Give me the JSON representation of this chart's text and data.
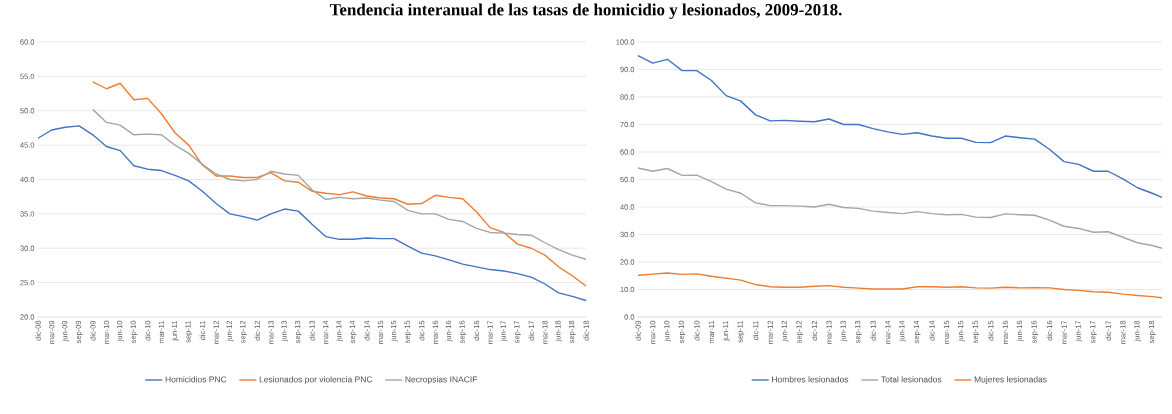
{
  "chart_data": [
    {
      "type": "line",
      "title": "Tendencia interanual de las tasas de homicidio y lesionados, 2009-2018.",
      "grid": "y",
      "legend": "bottom",
      "xlim": [
        "2008-12",
        "2018-12"
      ],
      "ylim": [
        20,
        60
      ],
      "yticks": [
        {
          "value": 20,
          "label": "20.0"
        },
        {
          "value": 25,
          "label": "25.0"
        },
        {
          "value": 30,
          "label": "30.0"
        },
        {
          "value": 35,
          "label": "35.0"
        },
        {
          "value": 40,
          "label": "40.0"
        },
        {
          "value": 45,
          "label": "45.0"
        },
        {
          "value": 50,
          "label": "50.0"
        },
        {
          "value": 55,
          "label": "55.0"
        },
        {
          "value": 60,
          "label": "60.0"
        }
      ],
      "xticks": [
        {
          "value": "2008-12",
          "label": "dic-08"
        },
        {
          "value": "2009-03",
          "label": "mar-09"
        },
        {
          "value": "2009-06",
          "label": "jun-09"
        },
        {
          "value": "2009-09",
          "label": "sep-09"
        },
        {
          "value": "2009-12",
          "label": "dic-09"
        },
        {
          "value": "2010-03",
          "label": "mar-10"
        },
        {
          "value": "2010-06",
          "label": "jun-10"
        },
        {
          "value": "2010-09",
          "label": "sep-10"
        },
        {
          "value": "2010-12",
          "label": "dic-10"
        },
        {
          "value": "2011-03",
          "label": "mar-11"
        },
        {
          "value": "2011-06",
          "label": "jun-11"
        },
        {
          "value": "2011-09",
          "label": "sep-11"
        },
        {
          "value": "2011-12",
          "label": "dic-11"
        },
        {
          "value": "2012-03",
          "label": "mar-12"
        },
        {
          "value": "2012-06",
          "label": "jun-12"
        },
        {
          "value": "2012-09",
          "label": "sep-12"
        },
        {
          "value": "2012-12",
          "label": "dic-12"
        },
        {
          "value": "2013-03",
          "label": "mar-13"
        },
        {
          "value": "2013-06",
          "label": "jun-13"
        },
        {
          "value": "2013-09",
          "label": "sep-13"
        },
        {
          "value": "2013-12",
          "label": "dic-13"
        },
        {
          "value": "2014-03",
          "label": "mar-14"
        },
        {
          "value": "2014-06",
          "label": "jun-14"
        },
        {
          "value": "2014-09",
          "label": "sep-14"
        },
        {
          "value": "2014-12",
          "label": "dic-14"
        },
        {
          "value": "2015-03",
          "label": "mar-15"
        },
        {
          "value": "2015-06",
          "label": "jun-15"
        },
        {
          "value": "2015-09",
          "label": "sep-15"
        },
        {
          "value": "2015-12",
          "label": "dic-15"
        },
        {
          "value": "2016-03",
          "label": "mar-16"
        },
        {
          "value": "2016-06",
          "label": "jun-16"
        },
        {
          "value": "2016-09",
          "label": "sep-16"
        },
        {
          "value": "2016-12",
          "label": "dic-16"
        },
        {
          "value": "2017-03",
          "label": "mar-17"
        },
        {
          "value": "2017-06",
          "label": "jun-17"
        },
        {
          "value": "2017-09",
          "label": "sep-17"
        },
        {
          "value": "2017-12",
          "label": "dic-17"
        },
        {
          "value": "2018-03",
          "label": "mar-18"
        },
        {
          "value": "2018-06",
          "label": "jun-18"
        },
        {
          "value": "2018-09",
          "label": "sep-18"
        },
        {
          "value": "2018-12",
          "label": "dic-18"
        }
      ],
      "series": [
        {
          "name": "Homicidios PNC",
          "color": "#4472c4",
          "x": [
            "2008-12",
            "2009-03",
            "2009-06",
            "2009-09",
            "2009-12",
            "2010-03",
            "2010-06",
            "2010-09",
            "2010-12",
            "2011-03",
            "2011-06",
            "2011-09",
            "2011-12",
            "2012-03",
            "2012-06",
            "2012-09",
            "2012-12",
            "2013-03",
            "2013-06",
            "2013-09",
            "2013-12",
            "2014-03",
            "2014-06",
            "2014-09",
            "2014-12",
            "2015-03",
            "2015-06",
            "2015-09",
            "2015-12",
            "2016-03",
            "2016-06",
            "2016-09",
            "2016-12",
            "2017-03",
            "2017-06",
            "2017-09",
            "2017-12",
            "2018-03",
            "2018-06",
            "2018-09",
            "2018-12"
          ],
          "values": [
            46.0,
            47.2,
            47.6,
            47.8,
            46.5,
            44.8,
            44.2,
            42.0,
            41.5,
            41.3,
            40.6,
            39.8,
            38.3,
            36.5,
            35.0,
            34.6,
            34.1,
            35.0,
            35.7,
            35.4,
            33.5,
            31.7,
            31.3,
            31.3,
            31.5,
            31.4,
            31.4,
            30.3,
            29.3,
            28.9,
            28.3,
            27.7,
            27.3,
            26.9,
            26.7,
            26.3,
            25.8,
            24.8,
            23.5,
            23.0,
            22.4
          ]
        },
        {
          "name": "Lesionados por violencia PNC",
          "color": "#ed7d31",
          "x": [
            "2009-12",
            "2010-03",
            "2010-06",
            "2010-09",
            "2010-12",
            "2011-03",
            "2011-06",
            "2011-09",
            "2011-12",
            "2012-03",
            "2012-06",
            "2012-09",
            "2012-12",
            "2013-03",
            "2013-06",
            "2013-09",
            "2013-12",
            "2014-03",
            "2014-06",
            "2014-09",
            "2014-12",
            "2015-03",
            "2015-06",
            "2015-09",
            "2015-12",
            "2016-03",
            "2016-06",
            "2016-09",
            "2016-12",
            "2017-03",
            "2017-06",
            "2017-09",
            "2017-12",
            "2018-03",
            "2018-06",
            "2018-09",
            "2018-12"
          ],
          "values": [
            54.2,
            53.2,
            54.0,
            51.6,
            51.8,
            49.6,
            46.8,
            45.0,
            42.1,
            40.5,
            40.5,
            40.3,
            40.3,
            41.0,
            39.8,
            39.6,
            38.3,
            38.0,
            37.8,
            38.2,
            37.6,
            37.3,
            37.2,
            36.4,
            36.5,
            37.7,
            37.4,
            37.2,
            35.3,
            33.0,
            32.3,
            30.6,
            30.0,
            29.0,
            27.3,
            26.0,
            24.5
          ]
        },
        {
          "name": "Necropsias INACIF",
          "color": "#a5a5a5",
          "x": [
            "2009-12",
            "2010-03",
            "2010-06",
            "2010-09",
            "2010-12",
            "2011-03",
            "2011-06",
            "2011-09",
            "2011-12",
            "2012-03",
            "2012-06",
            "2012-09",
            "2012-12",
            "2013-03",
            "2013-06",
            "2013-09",
            "2013-12",
            "2014-03",
            "2014-06",
            "2014-09",
            "2014-12",
            "2015-03",
            "2015-06",
            "2015-09",
            "2015-12",
            "2016-03",
            "2016-06",
            "2016-09",
            "2016-12",
            "2017-03",
            "2017-06",
            "2017-09",
            "2017-12",
            "2018-03",
            "2018-06",
            "2018-09",
            "2018-12"
          ],
          "values": [
            50.2,
            48.3,
            47.9,
            46.5,
            46.6,
            46.5,
            45.0,
            43.8,
            42.2,
            40.8,
            40.0,
            39.8,
            40.0,
            41.2,
            40.8,
            40.6,
            38.5,
            37.1,
            37.4,
            37.2,
            37.3,
            37.0,
            36.8,
            35.5,
            35.0,
            35.0,
            34.2,
            33.9,
            32.9,
            32.3,
            32.2,
            32.0,
            31.9,
            30.8,
            29.8,
            29.0,
            28.4
          ]
        }
      ]
    },
    {
      "type": "line",
      "grid": "y",
      "legend": "bottom",
      "xlim": [
        "2009-12",
        "2018-11"
      ],
      "ylim": [
        0,
        100
      ],
      "yticks": [
        {
          "value": 0,
          "label": "0.0"
        },
        {
          "value": 10,
          "label": "10.0"
        },
        {
          "value": 20,
          "label": "20.0"
        },
        {
          "value": 30,
          "label": "30.0"
        },
        {
          "value": 40,
          "label": "40.0"
        },
        {
          "value": 50,
          "label": "50.0"
        },
        {
          "value": 60,
          "label": "60.0"
        },
        {
          "value": 70,
          "label": "70.0"
        },
        {
          "value": 80,
          "label": "80.0"
        },
        {
          "value": 90,
          "label": "90.0"
        },
        {
          "value": 100,
          "label": "100.0"
        }
      ],
      "xticks": [
        {
          "value": "2009-12",
          "label": "dic-09"
        },
        {
          "value": "2010-03",
          "label": "mar-10"
        },
        {
          "value": "2010-06",
          "label": "jun-10"
        },
        {
          "value": "2010-09",
          "label": "sep-10"
        },
        {
          "value": "2010-12",
          "label": "dic-10"
        },
        {
          "value": "2011-03",
          "label": "mar-11"
        },
        {
          "value": "2011-06",
          "label": "jun-11"
        },
        {
          "value": "2011-09",
          "label": "sep-11"
        },
        {
          "value": "2011-12",
          "label": "dic-11"
        },
        {
          "value": "2012-03",
          "label": "mar-12"
        },
        {
          "value": "2012-06",
          "label": "jun-12"
        },
        {
          "value": "2012-09",
          "label": "sep-12"
        },
        {
          "value": "2012-12",
          "label": "dic-12"
        },
        {
          "value": "2013-03",
          "label": "mar-13"
        },
        {
          "value": "2013-06",
          "label": "jun-13"
        },
        {
          "value": "2013-09",
          "label": "sep-13"
        },
        {
          "value": "2013-12",
          "label": "dic-13"
        },
        {
          "value": "2014-03",
          "label": "mar-14"
        },
        {
          "value": "2014-06",
          "label": "jun-14"
        },
        {
          "value": "2014-09",
          "label": "sep-14"
        },
        {
          "value": "2014-12",
          "label": "dic-14"
        },
        {
          "value": "2015-03",
          "label": "mar-15"
        },
        {
          "value": "2015-06",
          "label": "jun-15"
        },
        {
          "value": "2015-09",
          "label": "sep-15"
        },
        {
          "value": "2015-12",
          "label": "dic-15"
        },
        {
          "value": "2016-03",
          "label": "mar-16"
        },
        {
          "value": "2016-06",
          "label": "jun-16"
        },
        {
          "value": "2016-09",
          "label": "sep-16"
        },
        {
          "value": "2016-12",
          "label": "dic-16"
        },
        {
          "value": "2017-03",
          "label": "mar-17"
        },
        {
          "value": "2017-06",
          "label": "jun-17"
        },
        {
          "value": "2017-09",
          "label": "sep-17"
        },
        {
          "value": "2017-12",
          "label": "dic-17"
        },
        {
          "value": "2018-03",
          "label": "mar-18"
        },
        {
          "value": "2018-06",
          "label": "jun-18"
        },
        {
          "value": "2018-09",
          "label": "sep-18"
        }
      ],
      "series": [
        {
          "name": "Hombres lesionados",
          "color": "#4472c4",
          "x": [
            "2009-12",
            "2010-03",
            "2010-06",
            "2010-09",
            "2010-12",
            "2011-03",
            "2011-06",
            "2011-09",
            "2011-12",
            "2012-03",
            "2012-06",
            "2012-09",
            "2012-12",
            "2013-03",
            "2013-06",
            "2013-09",
            "2013-12",
            "2014-03",
            "2014-06",
            "2014-09",
            "2014-12",
            "2015-03",
            "2015-06",
            "2015-09",
            "2015-12",
            "2016-03",
            "2016-06",
            "2016-09",
            "2016-12",
            "2017-03",
            "2017-06",
            "2017-09",
            "2017-12",
            "2018-03",
            "2018-06",
            "2018-09",
            "2018-11"
          ],
          "values": [
            95.0,
            92.3,
            93.7,
            89.6,
            89.6,
            86.0,
            80.5,
            78.5,
            73.5,
            71.3,
            71.5,
            71.2,
            71.0,
            72.0,
            70.0,
            70.0,
            68.5,
            67.3,
            66.4,
            67.0,
            65.8,
            65.0,
            65.0,
            63.5,
            63.4,
            65.8,
            65.2,
            64.7,
            61.0,
            56.5,
            55.5,
            53.0,
            53.0,
            50.2,
            47.0,
            45.0,
            43.5
          ]
        },
        {
          "name": "Total lesionados",
          "color": "#a5a5a5",
          "x": [
            "2009-12",
            "2010-03",
            "2010-06",
            "2010-09",
            "2010-12",
            "2011-03",
            "2011-06",
            "2011-09",
            "2011-12",
            "2012-03",
            "2012-06",
            "2012-09",
            "2012-12",
            "2013-03",
            "2013-06",
            "2013-09",
            "2013-12",
            "2014-03",
            "2014-06",
            "2014-09",
            "2014-12",
            "2015-03",
            "2015-06",
            "2015-09",
            "2015-12",
            "2016-03",
            "2016-06",
            "2016-09",
            "2016-12",
            "2017-03",
            "2017-06",
            "2017-09",
            "2017-12",
            "2018-03",
            "2018-06",
            "2018-09",
            "2018-11"
          ],
          "values": [
            54.2,
            53.0,
            54.0,
            51.5,
            51.6,
            49.2,
            46.5,
            45.0,
            41.5,
            40.5,
            40.5,
            40.3,
            40.0,
            41.0,
            39.8,
            39.5,
            38.5,
            38.0,
            37.6,
            38.3,
            37.6,
            37.2,
            37.3,
            36.3,
            36.2,
            37.5,
            37.2,
            37.0,
            35.2,
            33.0,
            32.2,
            30.8,
            31.0,
            29.0,
            27.0,
            26.0,
            25.0
          ]
        },
        {
          "name": "Mujeres lesionadas",
          "color": "#ed7d31",
          "x": [
            "2009-12",
            "2010-03",
            "2010-06",
            "2010-09",
            "2010-12",
            "2011-03",
            "2011-06",
            "2011-09",
            "2011-12",
            "2012-03",
            "2012-06",
            "2012-09",
            "2012-12",
            "2013-03",
            "2013-06",
            "2013-09",
            "2013-12",
            "2014-03",
            "2014-06",
            "2014-09",
            "2014-12",
            "2015-03",
            "2015-06",
            "2015-09",
            "2015-12",
            "2016-03",
            "2016-06",
            "2016-09",
            "2016-12",
            "2017-03",
            "2017-06",
            "2017-09",
            "2017-12",
            "2018-03",
            "2018-06",
            "2018-09",
            "2018-11"
          ],
          "values": [
            15.2,
            15.6,
            16.0,
            15.5,
            15.7,
            14.8,
            14.1,
            13.4,
            11.8,
            11.0,
            10.8,
            10.8,
            11.2,
            11.4,
            10.8,
            10.5,
            10.2,
            10.2,
            10.2,
            11.0,
            11.0,
            10.8,
            11.0,
            10.6,
            10.5,
            10.8,
            10.6,
            10.7,
            10.6,
            10.0,
            9.7,
            9.2,
            9.0,
            8.3,
            7.8,
            7.4,
            7.0
          ]
        }
      ]
    }
  ]
}
